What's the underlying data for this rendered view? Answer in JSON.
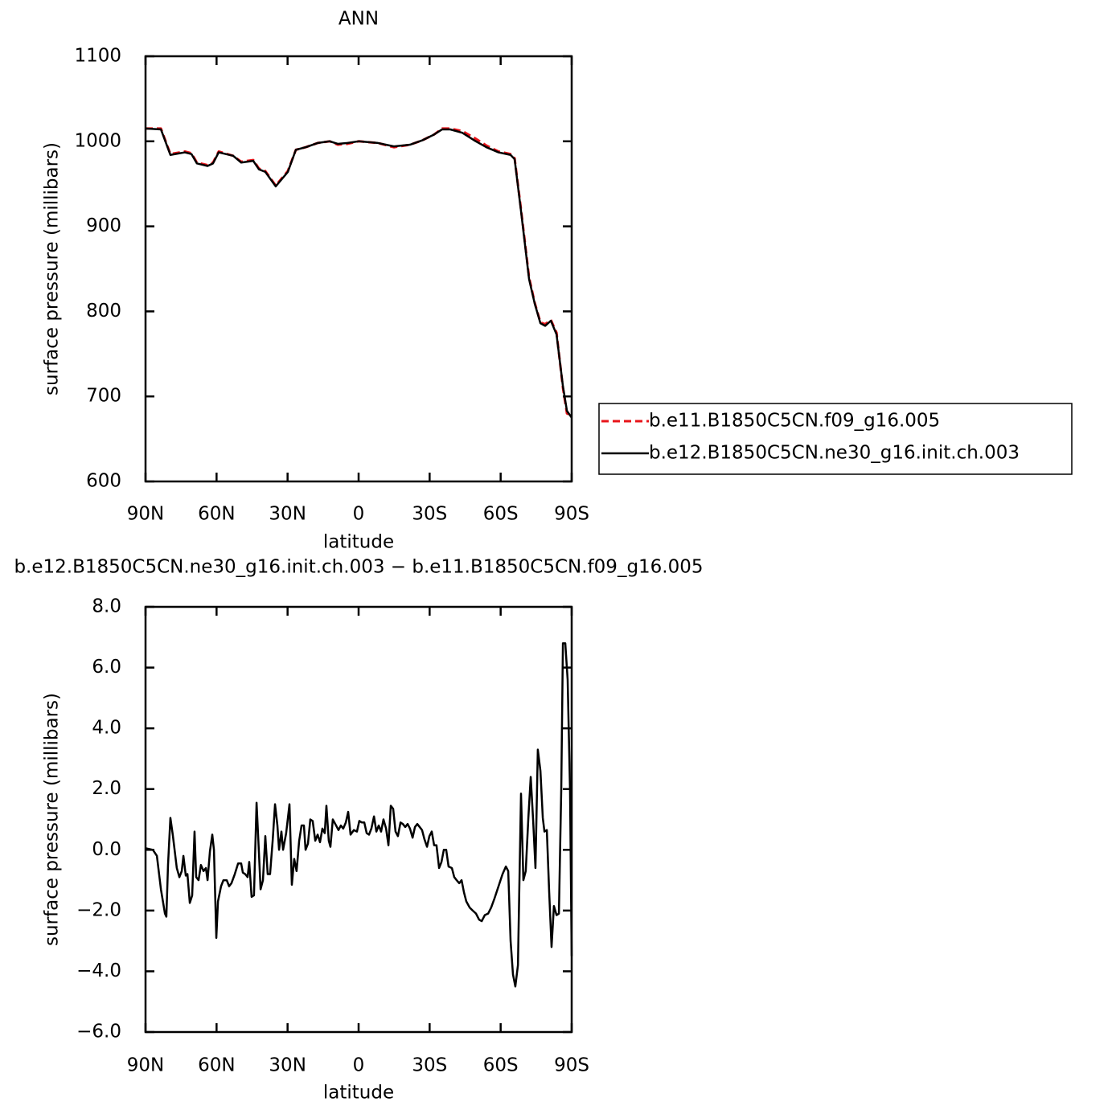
{
  "chart_data": [
    {
      "type": "line",
      "title": "ANN",
      "xlabel": "latitude",
      "ylabel": "surface pressure (millibars)",
      "x": [
        90,
        83.5,
        79.5,
        73.4,
        70.6,
        68.3,
        63.8,
        61.5,
        59.1,
        53.0,
        49.6,
        44.5,
        42.1,
        39.4,
        35.0,
        29.9,
        26.5,
        22.4,
        17.3,
        12.2,
        8.8,
        4.7,
        0,
        -8.2,
        -14.9,
        -21.7,
        -26.8,
        -31.9,
        -35.3,
        -38.7,
        -43.8,
        -48.9,
        -54.0,
        -59.1,
        -64.2,
        -65.9,
        -68.6,
        -72.0,
        -74.4,
        -76.8,
        -78.8,
        -81.2,
        -83.6,
        -86.3,
        -88.0,
        -90
      ],
      "series": [
        {
          "name": "b.e11.B1850C5CN.f09_g16.005",
          "color": "#e8141a",
          "dash": true,
          "values": [
            1015,
            1015,
            985,
            988,
            986,
            975,
            972,
            975,
            988,
            983,
            976,
            978,
            968,
            965,
            948,
            965,
            990,
            993,
            998,
            1000,
            996,
            997,
            1000,
            998,
            993,
            996,
            1001,
            1008,
            1015,
            1015,
            1012,
            1004,
            995,
            988,
            985,
            980,
            920,
            840,
            810,
            787,
            785,
            790,
            775,
            710,
            680,
            677
          ]
        },
        {
          "name": "b.e12.B1850C5CN.ne30_g16.init.ch.003",
          "color": "#000000",
          "dash": false,
          "values": [
            1015,
            1014,
            984,
            987,
            985,
            974,
            971,
            974,
            987,
            983,
            975,
            977,
            967,
            964,
            947,
            964,
            990,
            993,
            998,
            1000,
            997,
            998,
            1000,
            998,
            994,
            996,
            1001,
            1008,
            1014,
            1014,
            1010,
            1001,
            993,
            987,
            984,
            979,
            918,
            838,
            809,
            786,
            783,
            789,
            773,
            712,
            683,
            675
          ]
        }
      ],
      "xlim": [
        90,
        -90
      ],
      "xticks": [
        {
          "value": 90,
          "label": "90N"
        },
        {
          "value": 60,
          "label": "60N"
        },
        {
          "value": 30,
          "label": "30N"
        },
        0,
        {
          "value": -30,
          "label": "30S"
        },
        {
          "value": -60,
          "label": "60S"
        },
        {
          "value": -90,
          "label": "90S"
        }
      ],
      "ylim": [
        600,
        1100
      ],
      "yticks": [
        600,
        700,
        800,
        900,
        1000,
        1100
      ],
      "legend": "right"
    },
    {
      "type": "line",
      "title": "b.e12.B1850C5CN.ne30_g16.init.ch.003 − b.e11.B1850C5CN.f09_g16.005",
      "xlabel": "latitude",
      "ylabel": "surface pressure (millibars)",
      "x": [
        90,
        86.9,
        85.2,
        83.5,
        81.8,
        81.2,
        80.5,
        79.5,
        78.5,
        76.8,
        75.7,
        74.7,
        74.0,
        73.0,
        72.3,
        71.3,
        70.3,
        69.3,
        68.6,
        67.6,
        66.6,
        65.5,
        64.5,
        63.8,
        62.8,
        61.8,
        61.1,
        60.1,
        59.4,
        58.1,
        57.1,
        55.7,
        54.7,
        53.7,
        52.3,
        50.9,
        49.6,
        48.9,
        47.9,
        46.9,
        46.2,
        45.2,
        44.2,
        43.1,
        42.1,
        41.4,
        40.4,
        39.4,
        38.4,
        37.4,
        36.3,
        35.3,
        34.3,
        33.6,
        32.6,
        31.9,
        30.6,
        29.2,
        28.2,
        27.2,
        26.2,
        25.1,
        24.1,
        23.1,
        22.4,
        21.4,
        20.4,
        19.4,
        18.3,
        17.3,
        16.3,
        15.3,
        14.3,
        13.6,
        12.6,
        11.9,
        10.9,
        9.5,
        8.5,
        7.5,
        6.5,
        5.4,
        4.4,
        3.4,
        2.0,
        0.7,
        -0.3,
        -1.4,
        -2.4,
        -3.4,
        -4.4,
        -5.4,
        -6.5,
        -7.5,
        -8.5,
        -9.5,
        -10.5,
        -11.6,
        -12.6,
        -13.6,
        -14.6,
        -15.6,
        -16.6,
        -17.7,
        -18.7,
        -19.7,
        -20.7,
        -21.7,
        -22.8,
        -23.8,
        -24.8,
        -25.8,
        -26.8,
        -27.8,
        -28.9,
        -29.9,
        -30.9,
        -31.9,
        -32.9,
        -34.0,
        -35.0,
        -36.0,
        -37.0,
        -38.0,
        -39.4,
        -40.4,
        -41.4,
        -42.5,
        -43.5,
        -44.5,
        -45.5,
        -46.9,
        -48.2,
        -49.6,
        -50.9,
        -52.0,
        -53.3,
        -54.7,
        -56.0,
        -57.4,
        -59.1,
        -60.8,
        -62.2,
        -63.2,
        -64.2,
        -65.2,
        -66.2,
        -67.3,
        -68.6,
        -69.6,
        -70.6,
        -71.7,
        -72.7,
        -73.7,
        -74.7,
        -75.7,
        -76.8,
        -77.8,
        -78.5,
        -79.5,
        -80.5,
        -81.5,
        -82.5,
        -83.6,
        -84.6,
        -85.6,
        -86.3,
        -87.3,
        -88.3,
        -89.3,
        -90
      ],
      "series": [
        {
          "color": "#000000",
          "values": [
            0.05,
            0.0,
            -0.2,
            -1.3,
            -2.1,
            -2.2,
            -0.5,
            1.05,
            0.5,
            -0.6,
            -0.9,
            -0.7,
            -0.2,
            -0.85,
            -0.8,
            -1.75,
            -1.5,
            0.6,
            -0.9,
            -1.0,
            -0.5,
            -0.7,
            -0.6,
            -1.0,
            -0.05,
            0.5,
            0.0,
            -2.9,
            -1.7,
            -1.2,
            -1.0,
            -1.0,
            -1.2,
            -1.1,
            -0.8,
            -0.45,
            -0.45,
            -0.75,
            -0.8,
            -0.9,
            -0.4,
            -1.55,
            -1.5,
            1.55,
            -0.1,
            -1.3,
            -1.0,
            0.45,
            -0.8,
            -0.8,
            0.3,
            1.5,
            0.8,
            0.0,
            0.6,
            0.0,
            0.55,
            1.5,
            -1.15,
            -0.3,
            -0.7,
            0.3,
            0.8,
            0.8,
            0.0,
            0.2,
            1.0,
            0.95,
            0.3,
            0.5,
            0.25,
            0.7,
            0.55,
            1.45,
            0.3,
            0.1,
            1.0,
            0.8,
            0.65,
            0.8,
            0.7,
            0.9,
            1.25,
            0.5,
            0.65,
            0.6,
            0.95,
            0.9,
            0.9,
            0.55,
            0.5,
            0.7,
            1.1,
            0.6,
            0.8,
            0.6,
            1.0,
            0.7,
            0.15,
            1.45,
            1.35,
            0.6,
            0.45,
            0.9,
            0.85,
            0.75,
            0.85,
            0.7,
            0.4,
            0.75,
            0.85,
            0.75,
            0.65,
            0.35,
            0.1,
            0.45,
            0.6,
            0.15,
            0.15,
            -0.6,
            -0.4,
            0.0,
            0.0,
            -0.55,
            -0.6,
            -0.9,
            -1.0,
            -1.1,
            -1.0,
            -1.4,
            -1.7,
            -1.9,
            -2.0,
            -2.1,
            -2.3,
            -2.35,
            -2.15,
            -2.1,
            -1.9,
            -1.6,
            -1.2,
            -0.8,
            -0.55,
            -0.7,
            -3.0,
            -4.1,
            -4.5,
            -3.8,
            1.85,
            -1.0,
            -0.7,
            1.05,
            2.4,
            1.0,
            -0.6,
            3.3,
            2.6,
            1.05,
            0.6,
            0.65,
            -1.4,
            -3.2,
            -1.85,
            -2.15,
            -2.1,
            2.0,
            6.8,
            6.8,
            5.6,
            2.0,
            -3.5
          ]
        }
      ],
      "xlim": [
        90,
        -90
      ],
      "xticks": [
        {
          "value": 90,
          "label": "90N"
        },
        {
          "value": 60,
          "label": "60N"
        },
        {
          "value": 30,
          "label": "30N"
        },
        0,
        {
          "value": -30,
          "label": "30S"
        },
        {
          "value": -60,
          "label": "60S"
        },
        {
          "value": -90,
          "label": "90S"
        }
      ],
      "ylim": [
        -6,
        8
      ],
      "yticks": [
        {
          "value": -6,
          "label": "−6.0"
        },
        {
          "value": -4,
          "label": "−4.0"
        },
        {
          "value": -2,
          "label": "−2.0"
        },
        {
          "value": 0,
          "label": "0.0"
        },
        {
          "value": 2,
          "label": "2.0"
        },
        {
          "value": 4,
          "label": "4.0"
        },
        {
          "value": 6,
          "label": "6.0"
        },
        {
          "value": 8,
          "label": "8.0"
        }
      ]
    }
  ]
}
